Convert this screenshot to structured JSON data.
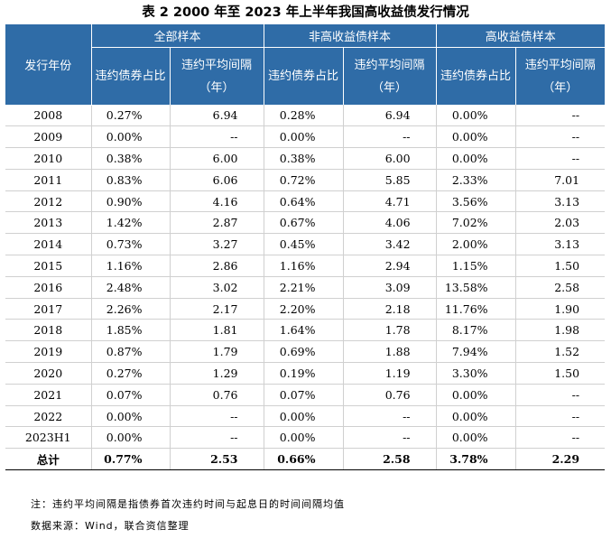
{
  "title": "表 2   2000 年至 2023 年上半年我国高收益债发行情况",
  "header": {
    "year_col": "发行年份",
    "groups": [
      "全部样本",
      "非高收益债样本",
      "高收益债样本"
    ],
    "ratio_col": "违约债券占比",
    "interval_col": "违约平均间隔（年）"
  },
  "rows": [
    [
      "2008",
      "0.27%",
      "6.94",
      "0.28%",
      "6.94",
      "0.00%",
      "--"
    ],
    [
      "2009",
      "0.00%",
      "--",
      "0.00%",
      "--",
      "0.00%",
      "--"
    ],
    [
      "2010",
      "0.38%",
      "6.00",
      "0.38%",
      "6.00",
      "0.00%",
      "--"
    ],
    [
      "2011",
      "0.83%",
      "6.06",
      "0.72%",
      "5.85",
      "2.33%",
      "7.01"
    ],
    [
      "2012",
      "0.90%",
      "4.16",
      "0.64%",
      "4.71",
      "3.56%",
      "3.13"
    ],
    [
      "2013",
      "1.42%",
      "2.87",
      "0.67%",
      "4.06",
      "7.02%",
      "2.03"
    ],
    [
      "2014",
      "0.73%",
      "3.27",
      "0.45%",
      "3.42",
      "2.00%",
      "3.13"
    ],
    [
      "2015",
      "1.16%",
      "2.86",
      "1.16%",
      "2.94",
      "1.15%",
      "1.50"
    ],
    [
      "2016",
      "2.48%",
      "3.02",
      "2.21%",
      "3.09",
      "13.58%",
      "2.58"
    ],
    [
      "2017",
      "2.26%",
      "2.17",
      "2.20%",
      "2.18",
      "11.76%",
      "1.90"
    ],
    [
      "2018",
      "1.85%",
      "1.81",
      "1.64%",
      "1.78",
      "8.17%",
      "1.98"
    ],
    [
      "2019",
      "0.87%",
      "1.79",
      "0.69%",
      "1.88",
      "7.94%",
      "1.52"
    ],
    [
      "2020",
      "0.27%",
      "1.29",
      "0.19%",
      "1.19",
      "3.30%",
      "1.50"
    ],
    [
      "2021",
      "0.07%",
      "0.76",
      "0.07%",
      "0.76",
      "0.00%",
      "--"
    ],
    [
      "2022",
      "0.00%",
      "--",
      "0.00%",
      "--",
      "0.00%",
      "--"
    ],
    [
      "2023H1",
      "0.00%",
      "--",
      "0.00%",
      "--",
      "0.00%",
      "--"
    ]
  ],
  "total": [
    "总计",
    "0.77%",
    "2.53",
    "0.66%",
    "2.58",
    "3.78%",
    "2.29"
  ],
  "note": "注：违约平均间隔是指债券首次违约时间与起息日的时间间隔均值",
  "source": "数据来源：Wind，联合资信整理",
  "colors": {
    "header_bg": "#2f6ca7",
    "header_text": "#ffffff"
  }
}
